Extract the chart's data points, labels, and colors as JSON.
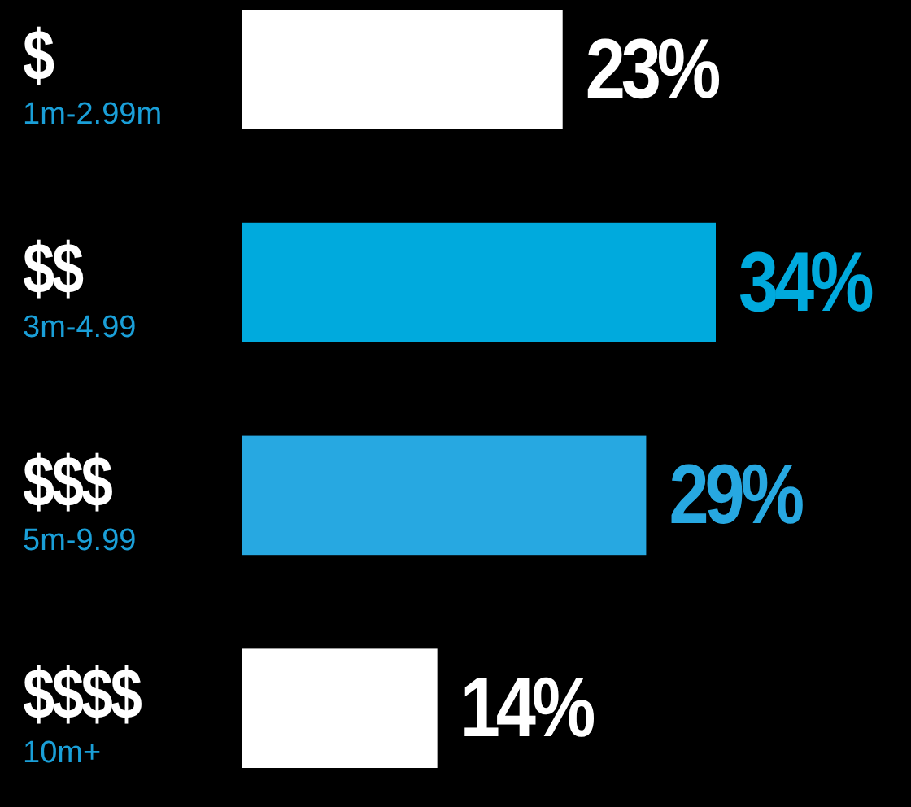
{
  "chart_data": {
    "type": "bar",
    "orientation": "horizontal",
    "categories": [
      "$\n1m-2.99m",
      "$$\n3m-4.99",
      "$$$\n5m-9.99",
      "$$$$\n10m+"
    ],
    "values": [
      23,
      34,
      29,
      14
    ],
    "colors": [
      "#ffffff",
      "#00aadd",
      "#27a8e1",
      "#ffffff"
    ],
    "value_labels": [
      "23%",
      "34%",
      "29%",
      "14%"
    ],
    "tick_labels": "y"
  }
}
